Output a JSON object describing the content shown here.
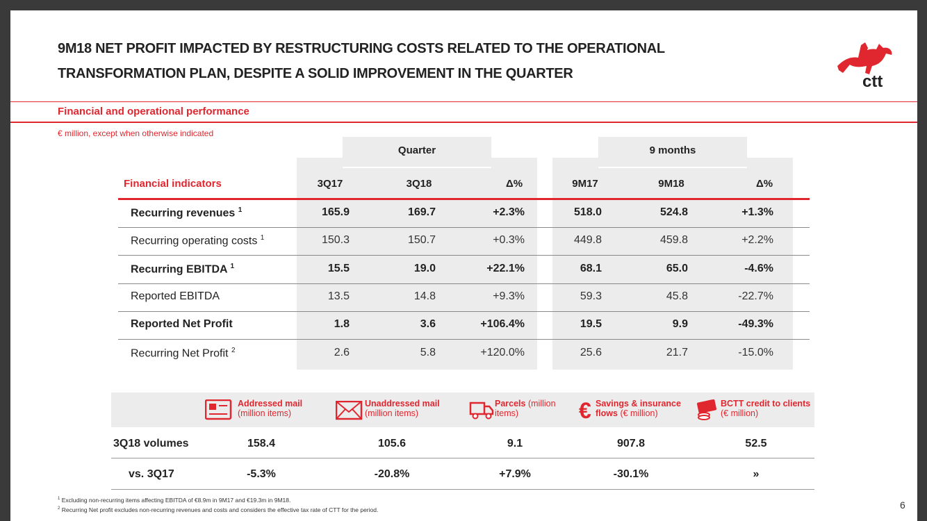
{
  "header": {
    "title_lines": [
      "9M18 NET PROFIT IMPACTED BY RESTRUCTURING COSTS RELATED TO THE OPERATIONAL",
      "TRANSFORMATION PLAN, DESPITE A SOLID IMPROVEMENT IN THE QUARTER"
    ],
    "logo_text": "ctt"
  },
  "section_title": "Financial and operational performance",
  "unit_note": "€ million, except when otherwise indicated",
  "table": {
    "groups": [
      "Quarter",
      "9 months"
    ],
    "row_header": "Financial indicators",
    "columns": [
      "3Q17",
      "3Q18",
      "Δ%",
      "9M17",
      "9M18",
      "Δ%"
    ],
    "rows": [
      {
        "label": "Recurring revenues",
        "note": "1",
        "bold": true,
        "cells": [
          "165.9",
          "169.7",
          "+2.3%",
          "518.0",
          "524.8",
          "+1.3%"
        ]
      },
      {
        "label": "Recurring operating costs",
        "note": "1",
        "bold": false,
        "cells": [
          "150.3",
          "150.7",
          "+0.3%",
          "449.8",
          "459.8",
          "+2.2%"
        ]
      },
      {
        "label": "Recurring EBITDA",
        "note": "1",
        "bold": true,
        "cells": [
          "15.5",
          "19.0",
          "+22.1%",
          "68.1",
          "65.0",
          "-4.6%"
        ]
      },
      {
        "label": "Reported EBITDA",
        "bold": false,
        "cells": [
          "13.5",
          "14.8",
          "+9.3%",
          "59.3",
          "45.8",
          "-22.7%"
        ]
      },
      {
        "label": "Reported Net Profit",
        "bold": true,
        "cells": [
          "1.8",
          "3.6",
          "+106.4%",
          "19.5",
          "9.9",
          "-49.3%"
        ]
      },
      {
        "label": "Recurring Net Profit",
        "note": "2",
        "bold": false,
        "cells": [
          "2.6",
          "5.8",
          "+120.0%",
          "25.6",
          "21.7",
          "-15.0%"
        ]
      }
    ]
  },
  "volumes": {
    "items": [
      {
        "name": "Addressed mail",
        "unit": "(million items)"
      },
      {
        "name": "Unaddressed mail",
        "unit": "(million items)"
      },
      {
        "name": "Parcels",
        "unit": "(million items)"
      },
      {
        "name": "Savings & insurance flows",
        "unit": "(€ million)"
      },
      {
        "name": "BCTT credit to clients",
        "unit": "(€ million)"
      }
    ],
    "rows": [
      {
        "label": "3Q18 volumes",
        "cells": [
          "158.4",
          "105.6",
          "9.1",
          "907.8",
          "52.5"
        ]
      },
      {
        "label": "vs. 3Q17",
        "cells": [
          "-5.3%",
          "-20.8%",
          "+7.9%",
          "-30.1%",
          "»"
        ]
      }
    ]
  },
  "footnotes": [
    {
      "marker": "1",
      "text": "Excluding non-recurring items affecting EBITDA of €8.9m in 9M17 and €19.3m in 9M18."
    },
    {
      "marker": "2",
      "text": "Recurring Net profit excludes non-recurring revenues and costs and considers the effective tax rate of CTT for the period."
    }
  ],
  "page_number": "6"
}
